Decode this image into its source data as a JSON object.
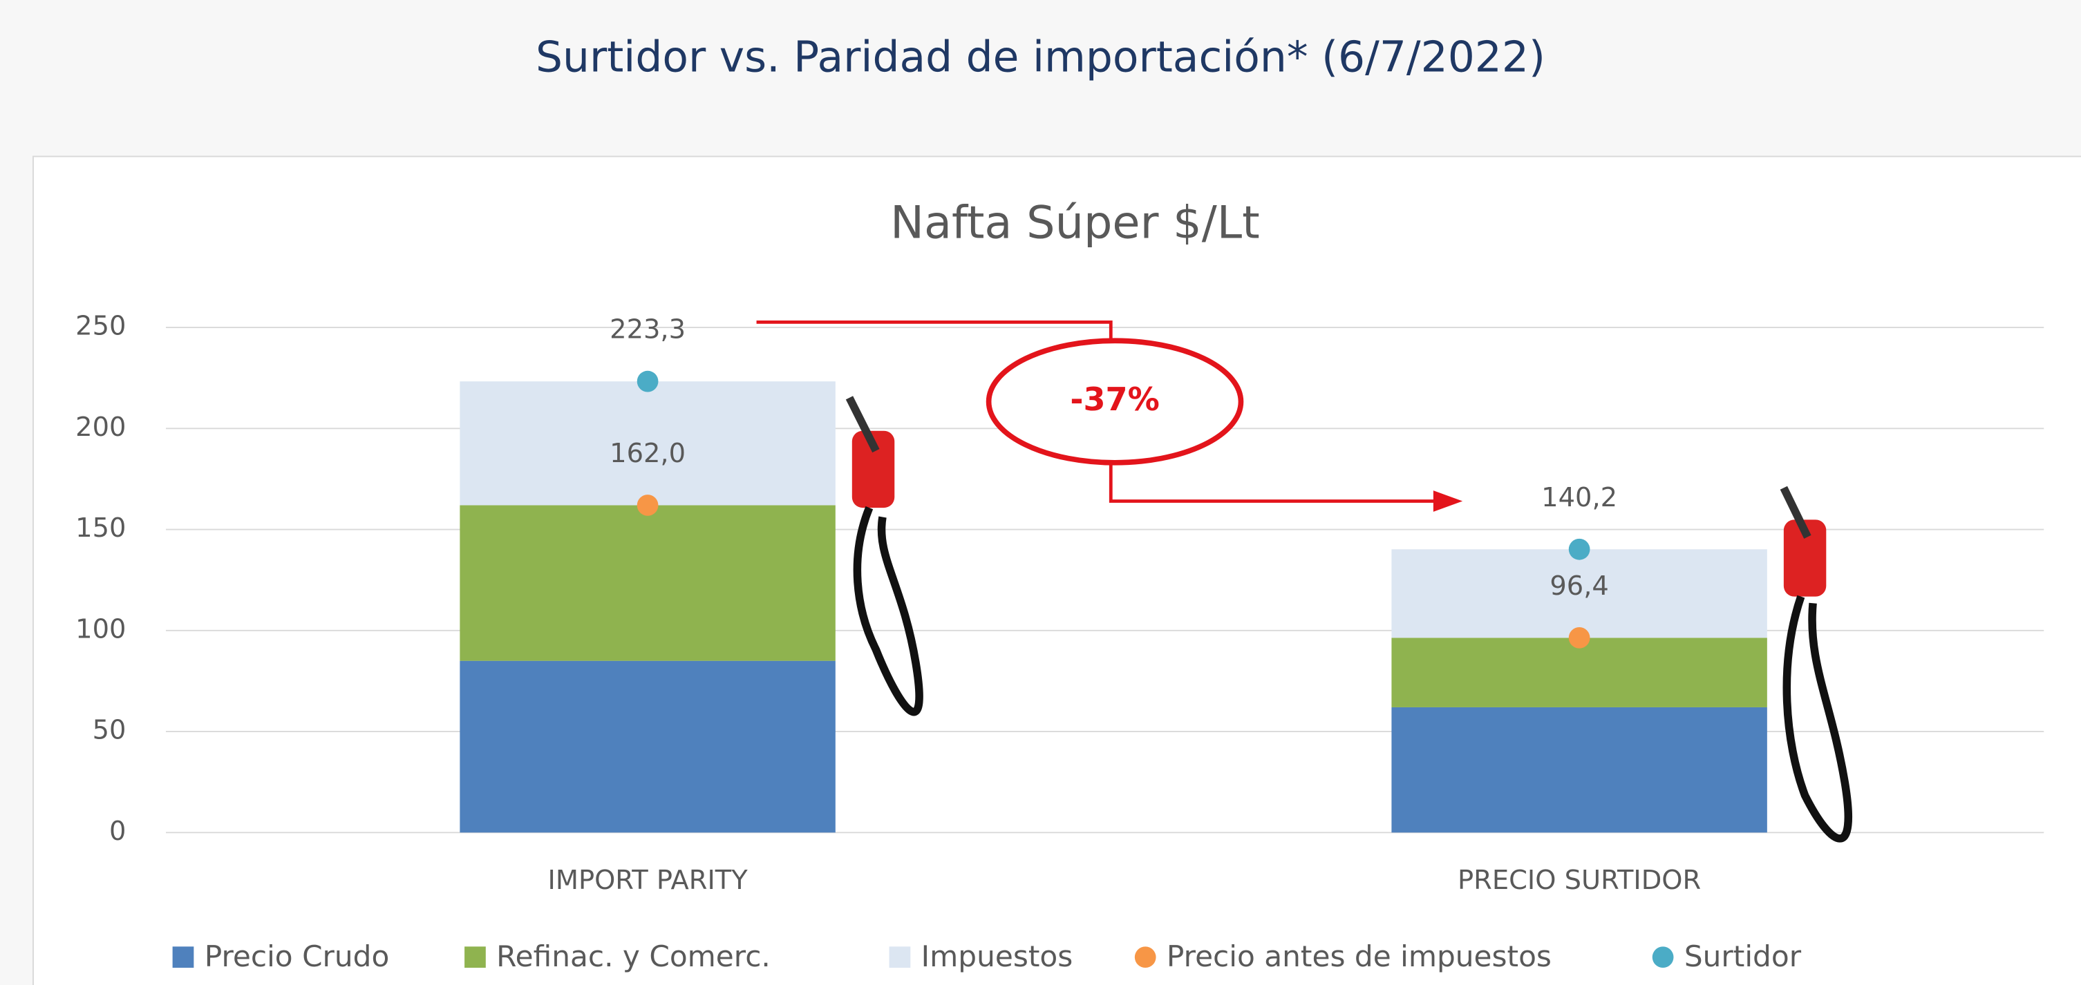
{
  "chart_data": {
    "type": "bar",
    "title": "Surtidor vs. Paridad de importación* (6/7/2022)",
    "subtitle": "Nafta Súper $/Lt",
    "categories": [
      "IMPORT PARITY",
      "PRECIO SURTIDOR"
    ],
    "series": [
      {
        "name": "Precio Crudo",
        "type": "bar",
        "color": "#4f81bd",
        "values": [
          85,
          62
        ]
      },
      {
        "name": "Refinac. y Comerc.",
        "type": "bar",
        "color": "#8fb34f",
        "values": [
          77,
          34.4
        ]
      },
      {
        "name": "Impuestos",
        "type": "bar",
        "color": "#dce6f2",
        "values": [
          61.3,
          43.8
        ]
      },
      {
        "name": "Precio antes de impuestos",
        "type": "scatter",
        "color": "#f79646",
        "values": [
          162.0,
          96.4
        ],
        "value_labels": [
          "162,0",
          "96,4"
        ]
      },
      {
        "name": "Surtidor",
        "type": "scatter",
        "color": "#4bacc6",
        "values": [
          223.3,
          140.2
        ],
        "value_labels": [
          "223,3",
          "140,2"
        ]
      }
    ],
    "annotation": "-37%",
    "annotation_color": "#e3141b",
    "ylim": [
      0,
      250
    ],
    "yticks": [
      0,
      50,
      100,
      150,
      200,
      250
    ],
    "grid": true,
    "legend": "bottom"
  }
}
